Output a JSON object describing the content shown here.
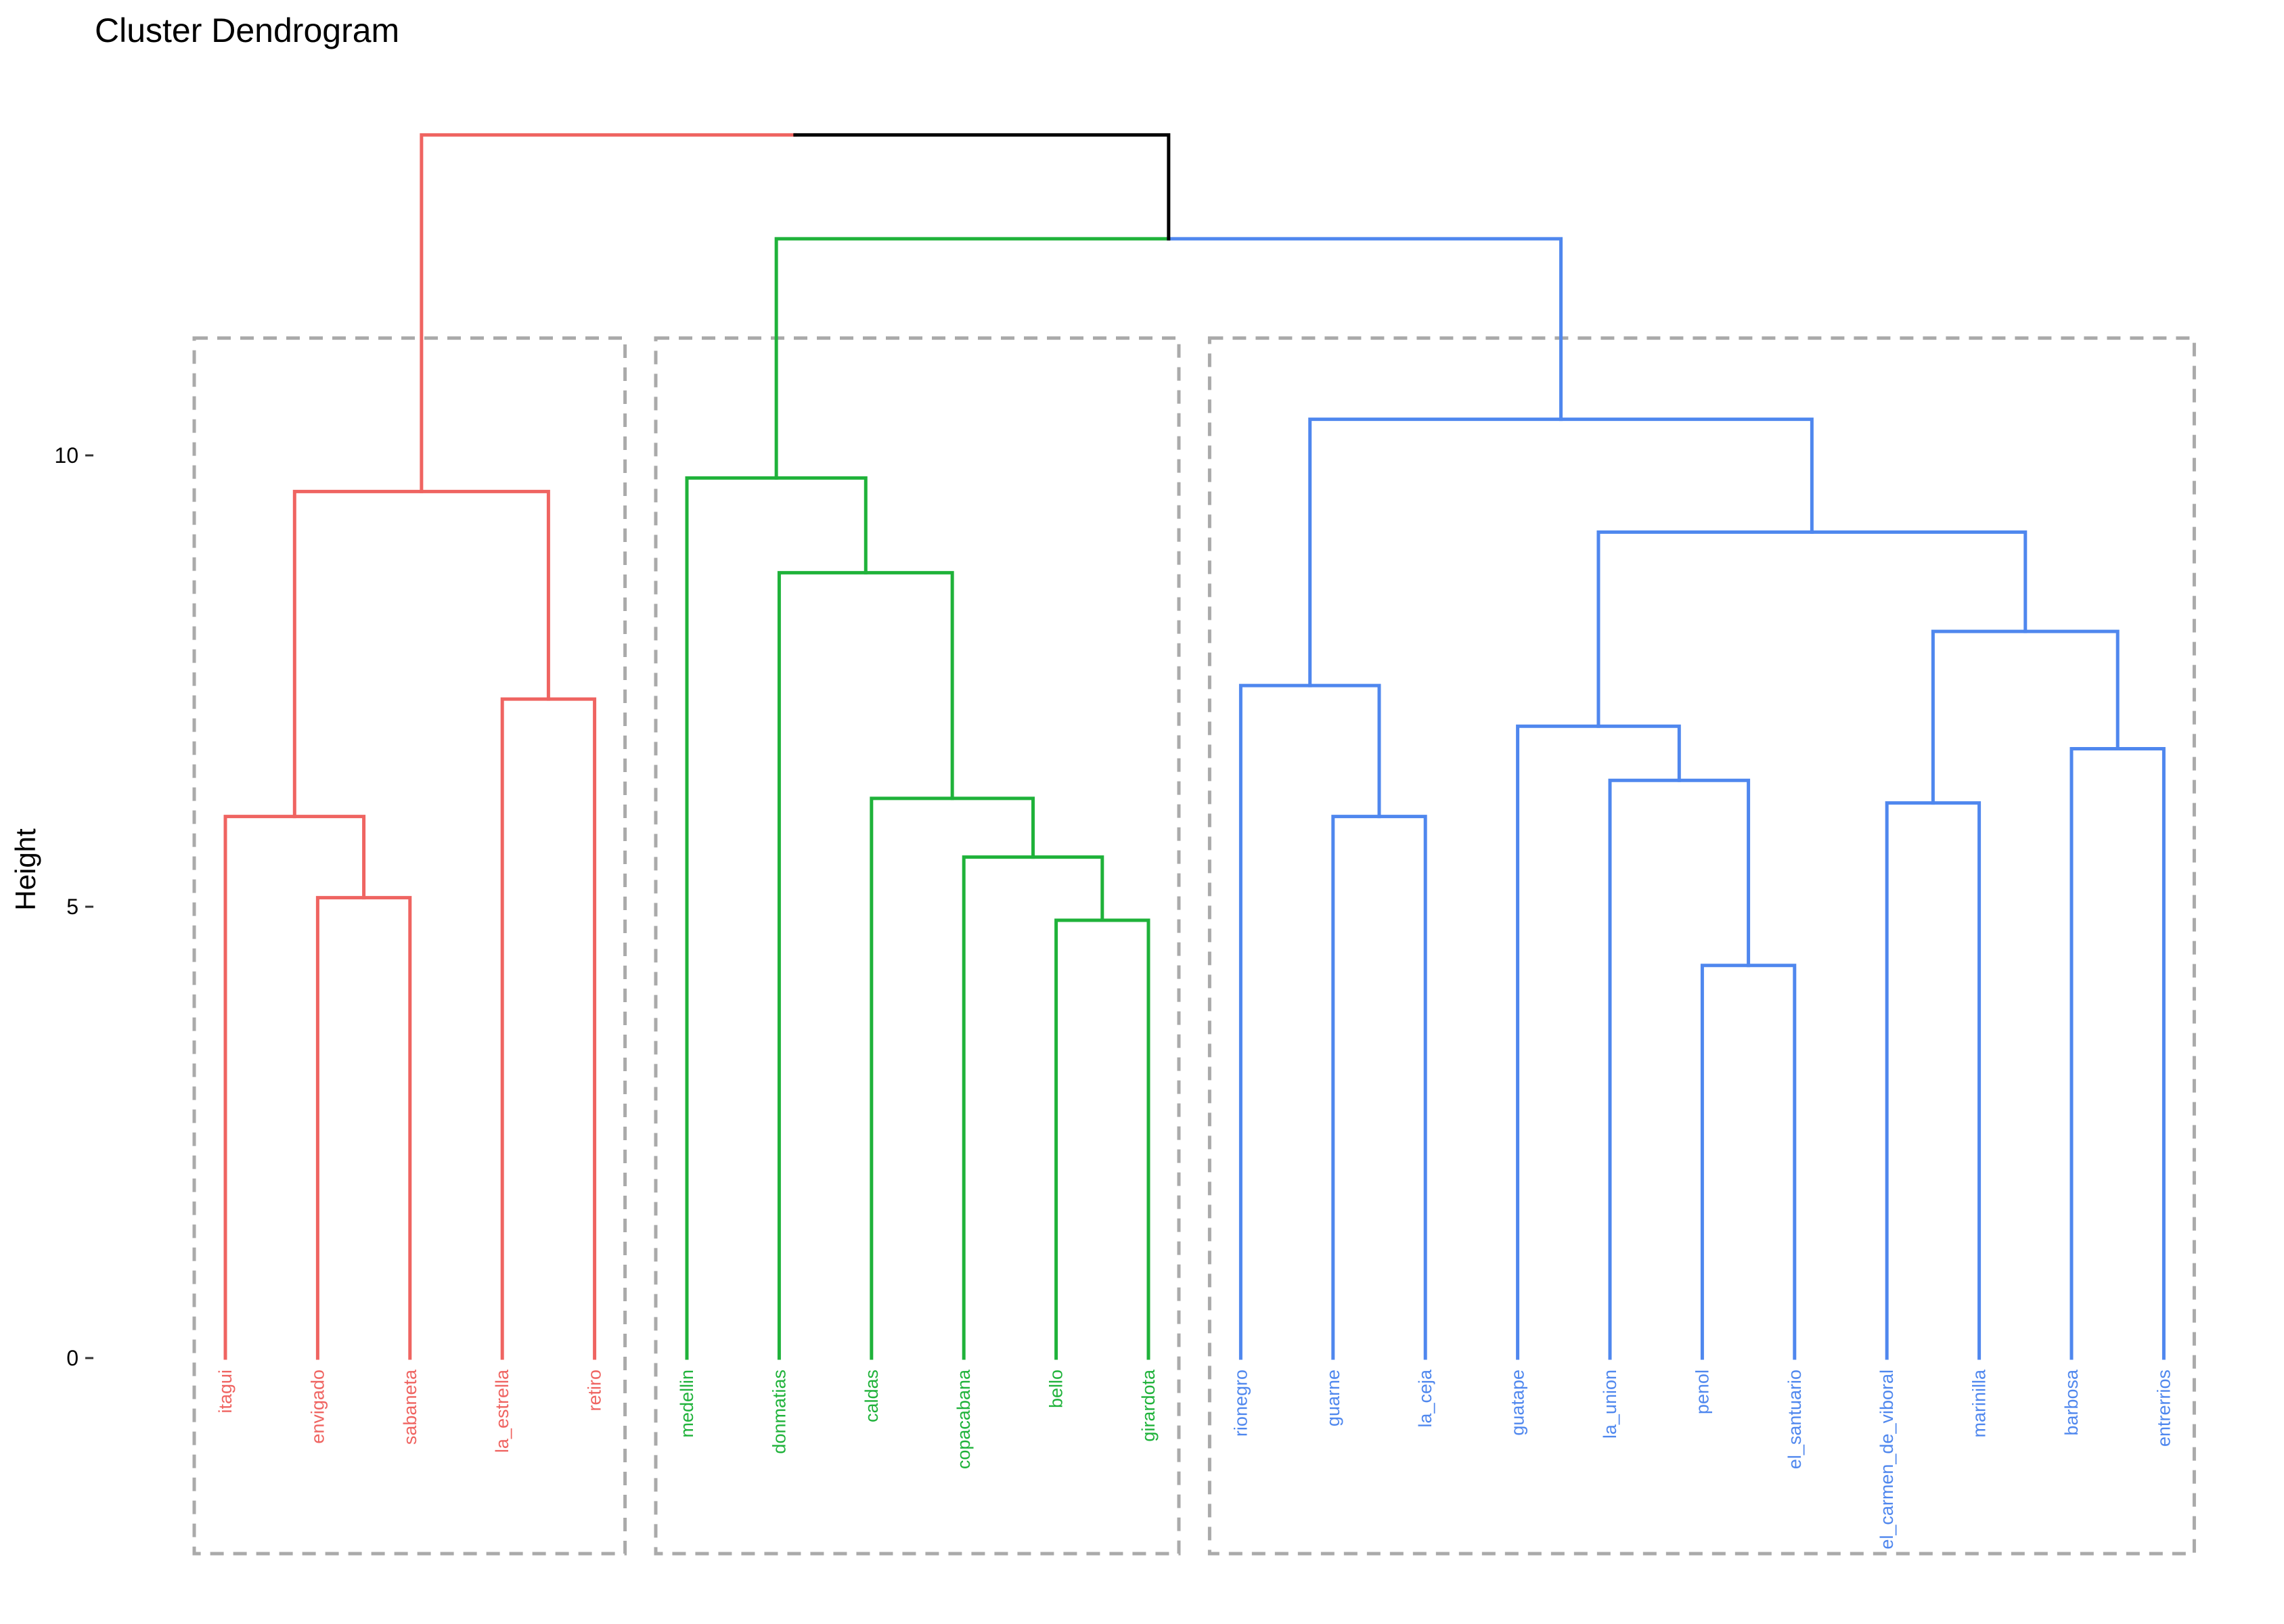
{
  "chart_data": {
    "type": "dendrogram",
    "title": "Cluster Dendrogram",
    "ylabel": "Height",
    "xlabel": "",
    "ylim": [
      -2.2,
      13.8
    ],
    "yticks": [
      0,
      5,
      10
    ],
    "grid": false,
    "legend": "none",
    "colors": {
      "cluster1": "#ef6461",
      "cluster2": "#1fb23a",
      "cluster3": "#4f87ee",
      "root": "#000000",
      "box": "#aaaaaa"
    },
    "leaves": [
      {
        "label": "itagui",
        "cluster": "cluster1"
      },
      {
        "label": "envigado",
        "cluster": "cluster1"
      },
      {
        "label": "sabaneta",
        "cluster": "cluster1"
      },
      {
        "label": "la_estrella",
        "cluster": "cluster1"
      },
      {
        "label": "retiro",
        "cluster": "cluster1"
      },
      {
        "label": "medellin",
        "cluster": "cluster2"
      },
      {
        "label": "donmatias",
        "cluster": "cluster2"
      },
      {
        "label": "caldas",
        "cluster": "cluster2"
      },
      {
        "label": "copacabana",
        "cluster": "cluster2"
      },
      {
        "label": "bello",
        "cluster": "cluster2"
      },
      {
        "label": "girardota",
        "cluster": "cluster2"
      },
      {
        "label": "rionegro",
        "cluster": "cluster3"
      },
      {
        "label": "guarne",
        "cluster": "cluster3"
      },
      {
        "label": "la_ceja",
        "cluster": "cluster3"
      },
      {
        "label": "guatape",
        "cluster": "cluster3"
      },
      {
        "label": "la_union",
        "cluster": "cluster3"
      },
      {
        "label": "penol",
        "cluster": "cluster3"
      },
      {
        "label": "el_santuario",
        "cluster": "cluster3"
      },
      {
        "label": "el_carmen_de_viboral",
        "cluster": "cluster3"
      },
      {
        "label": "marinilla",
        "cluster": "cluster3"
      },
      {
        "label": "barbosa",
        "cluster": "cluster3"
      },
      {
        "label": "entrerrios",
        "cluster": "cluster3"
      }
    ],
    "merges": [
      {
        "left": 1,
        "right": 2,
        "height": 5.1,
        "cluster": "cluster1"
      },
      {
        "left": 0,
        "right": "m0",
        "height": 6.0,
        "cluster": "cluster1"
      },
      {
        "left": 3,
        "right": 4,
        "height": 7.3,
        "cluster": "cluster1"
      },
      {
        "left": "m1",
        "right": "m2",
        "height": 9.6,
        "cluster": "cluster1"
      },
      {
        "left": 9,
        "right": 10,
        "height": 4.85,
        "cluster": "cluster2"
      },
      {
        "left": 8,
        "right": "m4",
        "height": 5.55,
        "cluster": "cluster2"
      },
      {
        "left": 7,
        "right": "m5",
        "height": 6.2,
        "cluster": "cluster2"
      },
      {
        "left": 6,
        "right": "m6",
        "height": 8.7,
        "cluster": "cluster2"
      },
      {
        "left": 5,
        "right": "m7",
        "height": 9.75,
        "cluster": "cluster2"
      },
      {
        "left": 12,
        "right": 13,
        "height": 6.0,
        "cluster": "cluster3"
      },
      {
        "left": 11,
        "right": "m9",
        "height": 7.45,
        "cluster": "cluster3"
      },
      {
        "left": 16,
        "right": 17,
        "height": 4.35,
        "cluster": "cluster3"
      },
      {
        "left": 15,
        "right": "m11",
        "height": 6.4,
        "cluster": "cluster3"
      },
      {
        "left": 14,
        "right": "m12",
        "height": 7.0,
        "cluster": "cluster3"
      },
      {
        "left": 18,
        "right": 19,
        "height": 6.15,
        "cluster": "cluster3"
      },
      {
        "left": 20,
        "right": 21,
        "height": 6.75,
        "cluster": "cluster3"
      },
      {
        "left": "m14",
        "right": "m15",
        "height": 8.05,
        "cluster": "cluster3"
      },
      {
        "left": "m13",
        "right": "m16",
        "height": 9.15,
        "cluster": "cluster3"
      },
      {
        "left": "m10",
        "right": "m17",
        "height": 10.4,
        "cluster": "cluster3"
      },
      {
        "left": "m8",
        "right": "m18",
        "height": 12.4,
        "cluster": "mixed23"
      },
      {
        "left": "m3",
        "right": "m19",
        "height": 13.55,
        "cluster": "mixed123"
      }
    ],
    "cluster_boxes": [
      {
        "first": 0,
        "last": 4,
        "top": 11.3
      },
      {
        "first": 5,
        "last": 10,
        "top": 11.3
      },
      {
        "first": 11,
        "last": 21,
        "top": 11.3
      }
    ]
  }
}
